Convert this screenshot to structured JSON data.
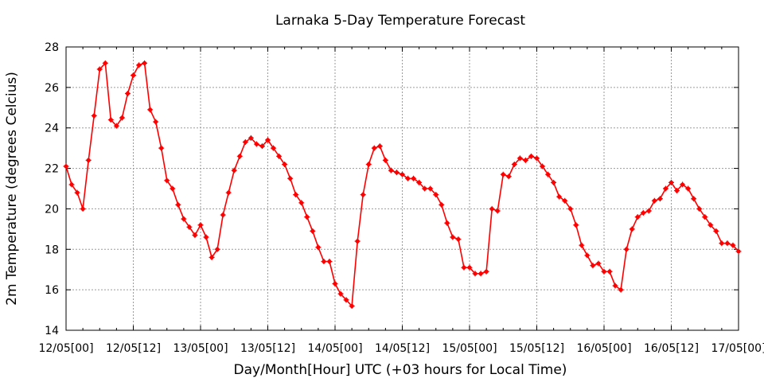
{
  "chart_data": {
    "type": "line",
    "title": "Larnaka 5-Day Temperature Forecast",
    "xlabel": "Day/Month[Hour] UTC (+03 hours for Local Time)",
    "ylabel": "2m Temperature (degrees Celcius)",
    "ylim": [
      14,
      28
    ],
    "yticks": [
      14,
      16,
      18,
      20,
      22,
      24,
      26,
      28
    ],
    "xlim": [
      0,
      120
    ],
    "x_unit": "hours since 12/05[00] UTC",
    "xticks": [
      0,
      12,
      24,
      36,
      48,
      60,
      72,
      84,
      96,
      108,
      120
    ],
    "xtick_labels": [
      "12/05[00]",
      "12/05[12]",
      "13/05[00]",
      "13/05[12]",
      "14/05[00]",
      "14/05[12]",
      "15/05[00]",
      "15/05[12]",
      "16/05[00]",
      "16/05[12]",
      "17/05[00]"
    ],
    "grid": true,
    "line_color": "#ff0000",
    "x": [
      0,
      1,
      2,
      3,
      4,
      5,
      6,
      7,
      8,
      9,
      10,
      11,
      12,
      13,
      14,
      15,
      16,
      17,
      18,
      19,
      20,
      21,
      22,
      23,
      24,
      25,
      26,
      27,
      28,
      29,
      30,
      31,
      32,
      33,
      34,
      35,
      36,
      37,
      38,
      39,
      40,
      41,
      42,
      43,
      44,
      45,
      46,
      47,
      48,
      49,
      50,
      51,
      52,
      53,
      54,
      55,
      56,
      57,
      58,
      59,
      60,
      61,
      62,
      63,
      64,
      65,
      66,
      67,
      68,
      69,
      70,
      71,
      72,
      73,
      74,
      75,
      76,
      77,
      78,
      79,
      80,
      81,
      82,
      83,
      84,
      85,
      86,
      87,
      88,
      89,
      90,
      91,
      92,
      93,
      94,
      95,
      96,
      97,
      98,
      99,
      100,
      101,
      102,
      103,
      104,
      105,
      106,
      107,
      108,
      109,
      110,
      111,
      112,
      113,
      114,
      115,
      116,
      117,
      118,
      119,
      120
    ],
    "values": [
      22.1,
      21.2,
      20.8,
      20.0,
      22.4,
      24.6,
      26.9,
      27.2,
      24.4,
      24.1,
      24.5,
      25.7,
      26.6,
      27.1,
      27.2,
      24.9,
      24.3,
      23.0,
      21.4,
      21.0,
      20.2,
      19.5,
      19.1,
      18.7,
      19.2,
      18.6,
      17.6,
      18.0,
      19.7,
      20.8,
      21.9,
      22.6,
      23.3,
      23.5,
      23.2,
      23.1,
      23.4,
      23.0,
      22.6,
      22.2,
      21.5,
      20.7,
      20.3,
      19.6,
      18.9,
      18.1,
      17.4,
      17.4,
      16.3,
      15.8,
      15.5,
      15.2,
      18.4,
      20.7,
      22.2,
      23.0,
      23.1,
      22.4,
      21.9,
      21.8,
      21.7,
      21.5,
      21.5,
      21.3,
      21.0,
      21.0,
      20.7,
      20.2,
      19.3,
      18.6,
      18.5,
      17.1,
      17.1,
      16.8,
      16.8,
      16.9,
      20.0,
      19.9,
      21.7,
      21.6,
      22.2,
      22.5,
      22.4,
      22.6,
      22.5,
      22.1,
      21.7,
      21.3,
      20.6,
      20.4,
      20.0,
      19.2,
      18.2,
      17.7,
      17.2,
      17.3,
      16.9,
      16.9,
      16.2,
      16.0,
      18.0,
      19.0,
      19.6,
      19.8,
      19.9,
      20.4,
      20.5,
      21.0,
      21.3,
      20.9,
      21.2,
      21.0,
      20.5,
      20.0,
      19.6,
      19.2,
      18.9,
      18.3,
      18.3,
      18.2,
      17.9
    ]
  }
}
